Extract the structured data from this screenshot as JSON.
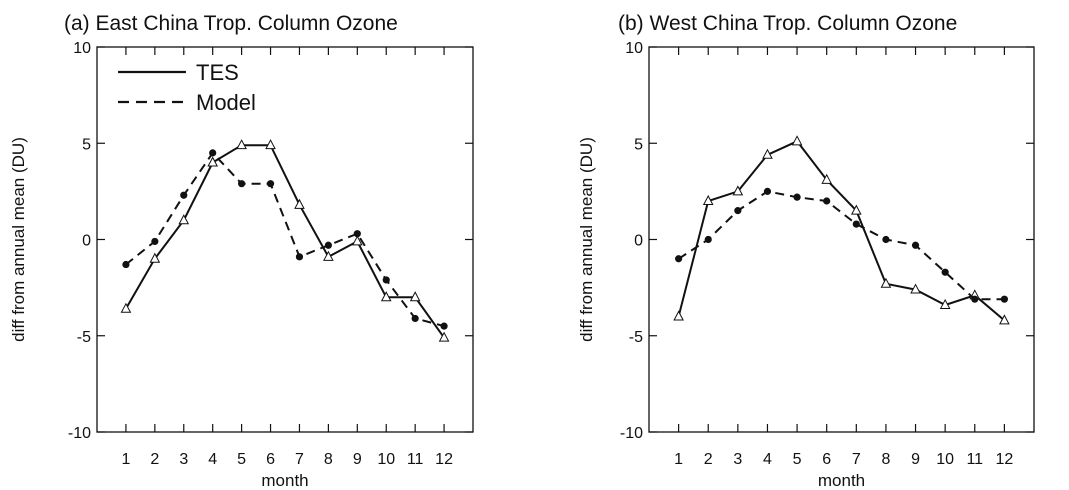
{
  "chart_data": [
    {
      "type": "line",
      "title": "(a) East China Trop. Column Ozone",
      "xlabel": "month",
      "ylabel": "diff from annual mean (DU)",
      "xlim": [
        0,
        13
      ],
      "ylim": [
        -10,
        10
      ],
      "x": [
        1,
        2,
        3,
        4,
        5,
        6,
        7,
        8,
        9,
        10,
        11,
        12
      ],
      "xticks": [
        "1",
        "2",
        "3",
        "4",
        "5",
        "6",
        "7",
        "8",
        "9",
        "10",
        "11",
        "12"
      ],
      "yticks": [
        "-10",
        "-5",
        "0",
        "5",
        "10"
      ],
      "ytick_values": [
        -10,
        -5,
        0,
        5,
        10
      ],
      "grid": false,
      "legend": "top-left",
      "series": [
        {
          "name": "TES",
          "style": "solid",
          "marker": "open-triangle",
          "values": [
            -3.6,
            -1.0,
            1.0,
            4.0,
            4.9,
            4.9,
            1.8,
            -0.9,
            -0.1,
            -3.0,
            -3.0,
            -5.1
          ]
        },
        {
          "name": "Model",
          "style": "dashed",
          "marker": "filled-circle",
          "values": [
            -1.3,
            -0.1,
            2.3,
            4.5,
            2.9,
            2.9,
            -0.9,
            -0.3,
            0.3,
            -2.1,
            -4.1,
            -4.5
          ]
        }
      ]
    },
    {
      "type": "line",
      "title": "(b) West China Trop. Column Ozone",
      "xlabel": "month",
      "ylabel": "diff from annual mean (DU)",
      "xlim": [
        0,
        13
      ],
      "ylim": [
        -10,
        10
      ],
      "x": [
        1,
        2,
        3,
        4,
        5,
        6,
        7,
        8,
        9,
        10,
        11,
        12
      ],
      "xticks": [
        "1",
        "2",
        "3",
        "4",
        "5",
        "6",
        "7",
        "8",
        "9",
        "10",
        "11",
        "12"
      ],
      "yticks": [
        "-10",
        "-5",
        "0",
        "5",
        "10"
      ],
      "ytick_values": [
        -10,
        -5,
        0,
        5,
        10
      ],
      "grid": false,
      "legend": "",
      "series": [
        {
          "name": "TES",
          "style": "solid",
          "marker": "open-triangle",
          "values": [
            -4.0,
            2.0,
            2.5,
            4.4,
            5.1,
            3.1,
            1.5,
            -2.3,
            -2.6,
            -3.4,
            -2.9,
            -4.2
          ]
        },
        {
          "name": "Model",
          "style": "dashed",
          "marker": "filled-circle",
          "values": [
            -1.0,
            0.0,
            1.5,
            2.5,
            2.2,
            2.0,
            0.8,
            0.0,
            -0.3,
            -1.7,
            -3.1,
            -3.1
          ]
        }
      ]
    }
  ]
}
